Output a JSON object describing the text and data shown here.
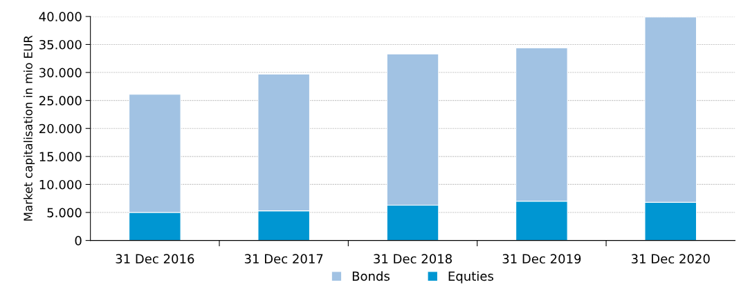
{
  "chart_data": {
    "type": "bar",
    "ylabel": "Market capitalisation in mio EUR",
    "categories": [
      "31 Dec 2016",
      "31 Dec 2017",
      "31 Dec 2018",
      "31 Dec 2019",
      "31 Dec 2020"
    ],
    "stacked": true,
    "series": [
      {
        "name": "Equties",
        "color": "#0096d2",
        "values": [
          5000,
          5300,
          6300,
          7000,
          6800
        ]
      },
      {
        "name": "Bonds",
        "color": "#a1c2e3",
        "values": [
          21100,
          24400,
          27000,
          27400,
          33100
        ]
      }
    ],
    "ylim": [
      0,
      40000
    ],
    "yticks": [
      {
        "value": 0,
        "label": "0"
      },
      {
        "value": 5000,
        "label": "5.000"
      },
      {
        "value": 10000,
        "label": "10.000"
      },
      {
        "value": 15000,
        "label": "15.000"
      },
      {
        "value": 20000,
        "label": "20.000"
      },
      {
        "value": 25000,
        "label": "25.000"
      },
      {
        "value": 30000,
        "label": "30.000"
      },
      {
        "value": 35000,
        "label": "35.000"
      },
      {
        "value": 40000,
        "label": "40.000"
      }
    ],
    "grid": "y",
    "legend": "bottom"
  }
}
